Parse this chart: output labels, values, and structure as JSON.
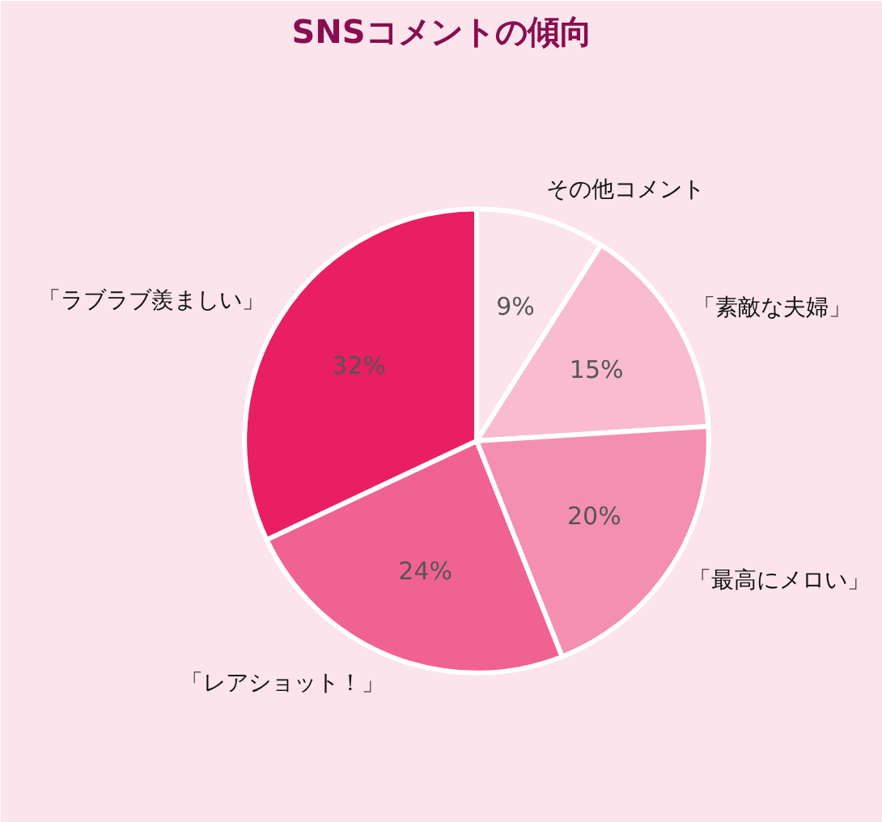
{
  "chart_data": {
    "type": "pie",
    "title": "SNSコメントの傾向",
    "categories": [
      "その他コメント",
      "「素敵な夫婦」",
      "「最高にメロい」",
      "「レアショット！」",
      "「ラブラブ羨ましい」"
    ],
    "values": [
      9,
      15,
      20,
      24,
      32
    ],
    "value_labels": [
      "9%",
      "15%",
      "20%",
      "24%",
      "32%"
    ],
    "colors": [
      "#fce4ec",
      "#f8bbd0",
      "#f48fb1",
      "#f06292",
      "#e91e63"
    ]
  }
}
